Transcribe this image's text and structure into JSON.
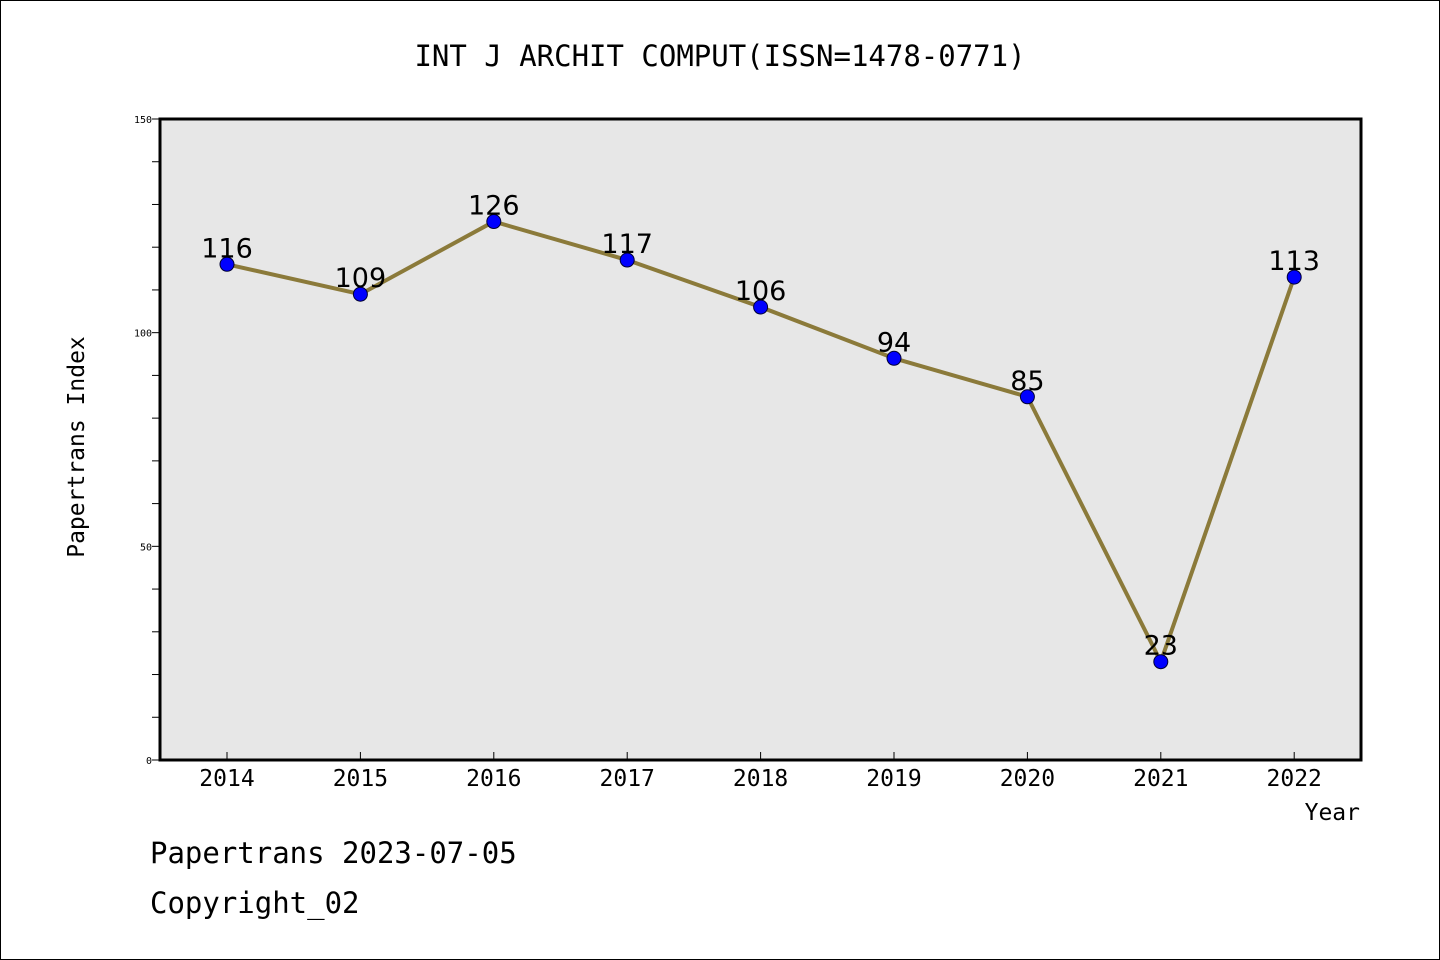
{
  "chart_data": {
    "type": "line",
    "title": "INT J ARCHIT COMPUT(ISSN=1478-0771)",
    "xlabel": "Year",
    "ylabel": "Papertrans Index",
    "ylim": [
      0,
      150
    ],
    "y_ticks": [
      0,
      50,
      100,
      150
    ],
    "categories": [
      "2014",
      "2015",
      "2016",
      "2017",
      "2018",
      "2019",
      "2020",
      "2021",
      "2022"
    ],
    "values": [
      116,
      109,
      126,
      117,
      106,
      94,
      85,
      23,
      113
    ],
    "data_labels": [
      "116",
      "109",
      "126",
      "117",
      "106",
      "94",
      "85",
      "23",
      "113"
    ],
    "grid": false,
    "line_color": "#8b7a3a",
    "marker_color": "#0000ff",
    "plot_background": "#e7e7e7"
  },
  "footer": {
    "line1": "Papertrans 2023-07-05",
    "line2": "Copyright_02"
  }
}
